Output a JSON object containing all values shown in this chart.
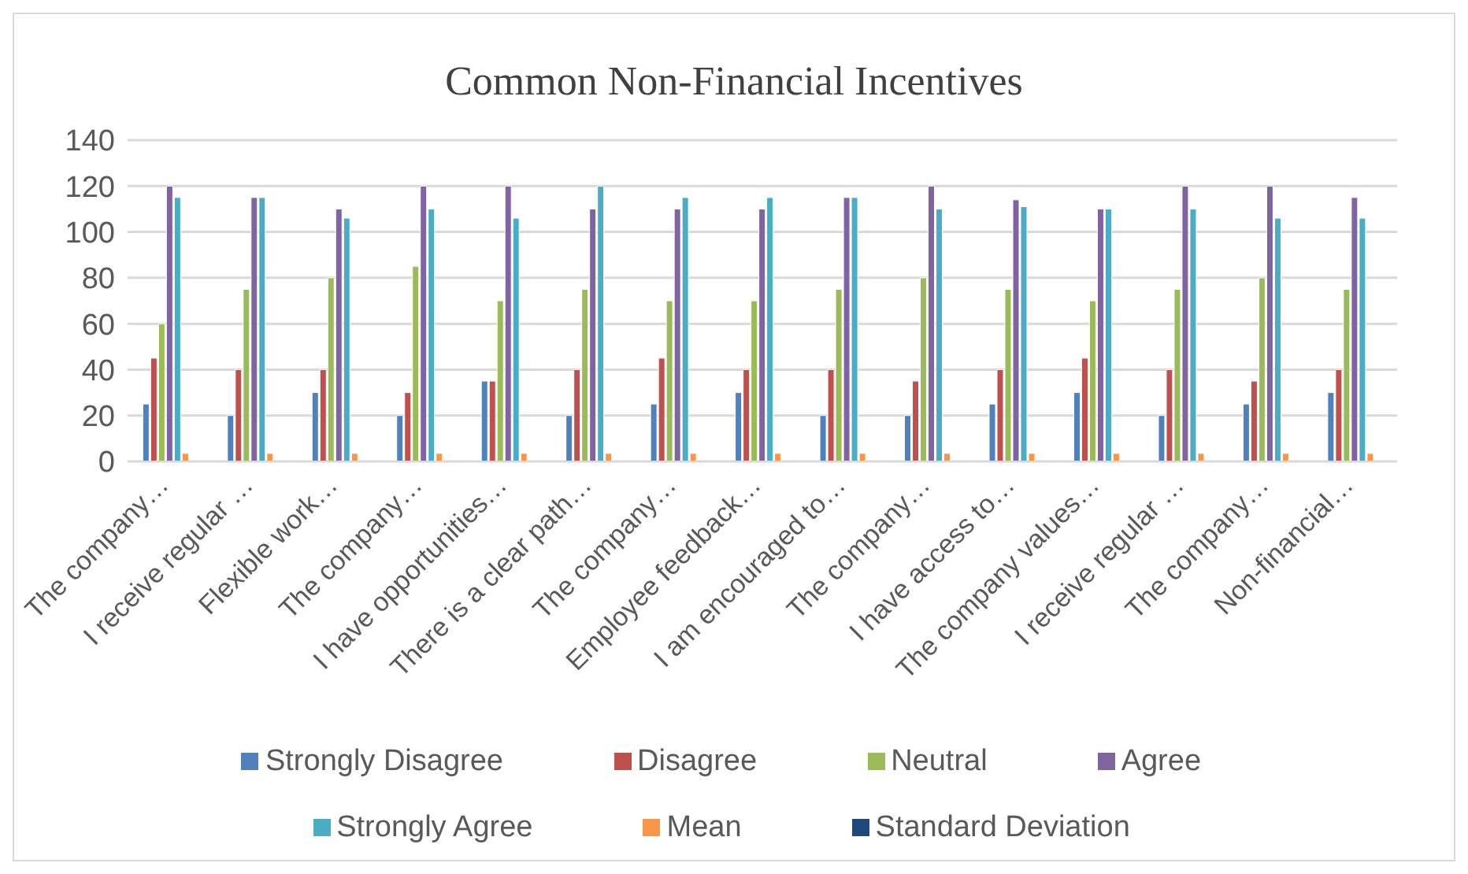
{
  "chart_data": {
    "type": "bar",
    "title": "Common Non-Financial Incentives",
    "categories": [
      "The company…",
      "I receive regular …",
      "Flexible work…",
      "The company…",
      "I have opportunities…",
      "There is a clear path…",
      "The company…",
      "Employee feedback…",
      "I am encouraged to…",
      "The company…",
      "I have access to…",
      "The company values…",
      "I receive regular …",
      "The company…",
      "Non-financial…"
    ],
    "series": [
      {
        "name": "Strongly Disagree",
        "color": "#4f81bd",
        "values": [
          25,
          20,
          30,
          20,
          35,
          20,
          25,
          30,
          20,
          20,
          25,
          30,
          20,
          25,
          30
        ]
      },
      {
        "name": "Disagree",
        "color": "#c0504d",
        "values": [
          45,
          40,
          40,
          30,
          35,
          40,
          45,
          40,
          40,
          35,
          40,
          45,
          40,
          35,
          40
        ]
      },
      {
        "name": "Neutral",
        "color": "#9bbb59",
        "values": [
          60,
          75,
          80,
          85,
          70,
          75,
          70,
          70,
          75,
          80,
          75,
          70,
          75,
          80,
          75
        ]
      },
      {
        "name": "Agree",
        "color": "#8064a2",
        "values": [
          120,
          115,
          110,
          120,
          120,
          110,
          110,
          110,
          115,
          120,
          114,
          110,
          120,
          120,
          115
        ]
      },
      {
        "name": "Strongly Agree",
        "color": "#4bacc6",
        "values": [
          115,
          115,
          106,
          110,
          106,
          120,
          115,
          115,
          115,
          110,
          111,
          110,
          110,
          106,
          106
        ]
      },
      {
        "name": "Mean",
        "color": "#f79646",
        "values": [
          3.5,
          3.5,
          3.5,
          3.5,
          3.5,
          3.5,
          3.5,
          3.5,
          3.5,
          3.5,
          3.5,
          3.5,
          3.5,
          3.5,
          3.5
        ]
      },
      {
        "name": "Standard Deviation",
        "color": "#1f497d",
        "values": [
          null,
          null,
          null,
          null,
          null,
          null,
          null,
          null,
          null,
          null,
          null,
          null,
          null,
          null,
          null
        ]
      }
    ],
    "ylim": [
      0,
      140
    ],
    "yticks": [
      0,
      20,
      40,
      60,
      80,
      100,
      120,
      140
    ],
    "grid": "y",
    "legend": "bottom"
  }
}
